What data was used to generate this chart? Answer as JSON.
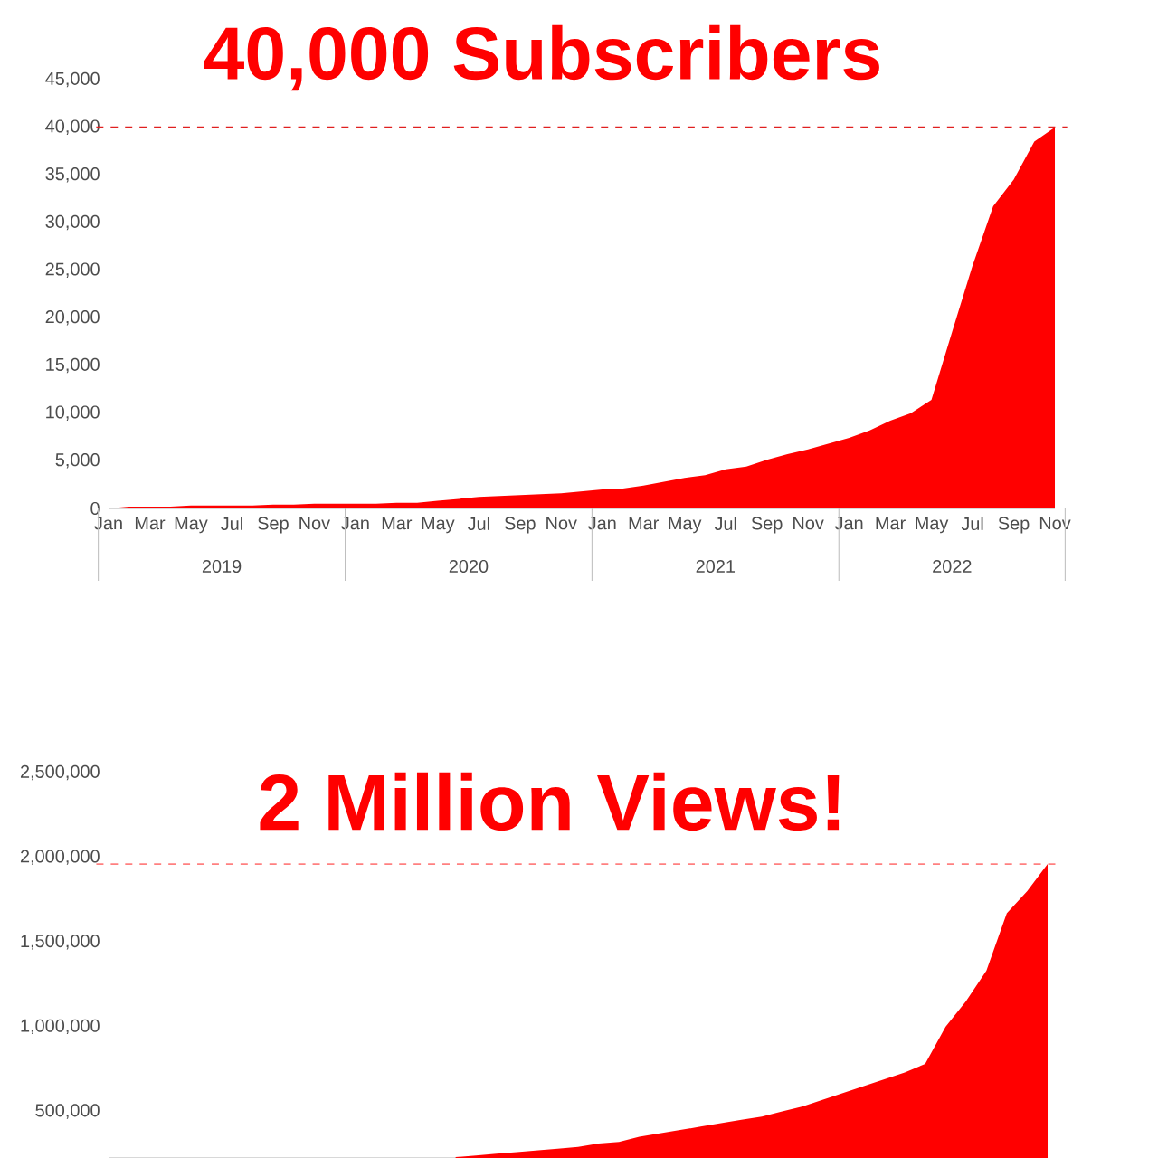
{
  "chart_data": [
    {
      "type": "area",
      "title": "40,000 Subscribers",
      "categories": [
        "Jan",
        null,
        "Mar",
        null,
        "May",
        null,
        "Jul",
        null,
        "Sep",
        null,
        "Nov",
        null,
        "Jan",
        null,
        "Mar",
        null,
        "May",
        null,
        "Jul",
        null,
        "Sep",
        null,
        "Nov",
        null,
        "Jan",
        null,
        "Mar",
        null,
        "May",
        null,
        "Jul",
        null,
        "Sep",
        null,
        "Nov",
        null,
        "Jan",
        null,
        "Mar",
        null,
        "May",
        null,
        "Jul",
        null,
        "Sep",
        null,
        "Nov"
      ],
      "series": [
        {
          "color": "#ff0000",
          "values": [
            0,
            200,
            200,
            200,
            300,
            300,
            300,
            300,
            400,
            400,
            500,
            500,
            500,
            500,
            600,
            600,
            800,
            1000,
            1200,
            1300,
            1400,
            1500,
            1600,
            1800,
            2000,
            2100,
            2400,
            2800,
            3200,
            3500,
            4100,
            4400,
            5100,
            5700,
            6200,
            6800,
            7400,
            8200,
            9200,
            10000,
            11400,
            18500,
            25500,
            31700,
            34500,
            38500,
            40000
          ]
        }
      ],
      "ylim": [
        0,
        45000
      ],
      "yticks": [
        {
          "value": 0,
          "label": "0"
        },
        {
          "value": 5000,
          "label": "5,000"
        },
        {
          "value": 10000,
          "label": "10,000"
        },
        {
          "value": 15000,
          "label": "15,000"
        },
        {
          "value": 20000,
          "label": "20,000"
        },
        {
          "value": 25000,
          "label": "25,000"
        },
        {
          "value": 30000,
          "label": "30,000"
        },
        {
          "value": 35000,
          "label": "35,000"
        },
        {
          "value": 40000,
          "label": "40,000"
        },
        {
          "value": 45000,
          "label": "45,000"
        }
      ],
      "ref_lines": [
        {
          "axis": "y",
          "value": 40000,
          "label": null,
          "color": "#e02020",
          "line_style": "dashed"
        }
      ],
      "annotations": [
        "2019",
        "2020",
        "2021",
        "2022"
      ]
    },
    {
      "type": "area",
      "title": "2 Million Views!",
      "categories": [
        null,
        null,
        null,
        null,
        null,
        null,
        null,
        null,
        null,
        null,
        null,
        null,
        null,
        null,
        null,
        null,
        null,
        null,
        null,
        null,
        null,
        null,
        null,
        null,
        null,
        null,
        null,
        null,
        null,
        null,
        null,
        null,
        null,
        null,
        null,
        null,
        null,
        null,
        null,
        null,
        null,
        null,
        null,
        null,
        null,
        null,
        null
      ],
      "series": [
        {
          "color": "#ff0000",
          "values": [
            null,
            null,
            null,
            null,
            null,
            null,
            null,
            null,
            null,
            null,
            null,
            null,
            null,
            null,
            null,
            null,
            null,
            230000,
            240000,
            250000,
            260000,
            270000,
            280000,
            290000,
            310000,
            320000,
            350000,
            370000,
            390000,
            410000,
            430000,
            450000,
            470000,
            500000,
            530000,
            570000,
            610000,
            650000,
            690000,
            730000,
            780000,
            1000000,
            1150000,
            1330000,
            1670000,
            1800000,
            1960000
          ]
        }
      ],
      "ylim": [
        225000,
        2500000
      ],
      "yticks": [
        {
          "value": 500000,
          "label": "500,000"
        },
        {
          "value": 1000000,
          "label": "1,000,000"
        },
        {
          "value": 1500000,
          "label": "1,500,000"
        },
        {
          "value": 2000000,
          "label": "2,000,000"
        },
        {
          "value": 2500000,
          "label": "2,500,000"
        }
      ],
      "ref_lines": [
        {
          "axis": "y",
          "value": 1960000,
          "label": null,
          "color": "#ff8080",
          "line_style": "dashed"
        }
      ],
      "tick_labels": "y"
    }
  ]
}
